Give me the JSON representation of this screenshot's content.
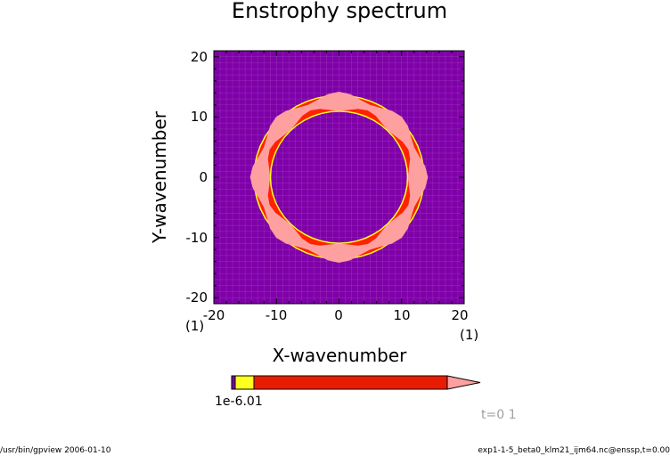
{
  "chart_data": {
    "type": "heatmap",
    "title": "Enstrophy spectrum",
    "xlabel": "X-wavenumber",
    "ylabel": "Y-wavenumber",
    "xlim": [
      -20,
      20
    ],
    "ylim": [
      -21,
      21
    ],
    "x_ticks": [
      -20,
      -10,
      0,
      10,
      20
    ],
    "y_ticks": [
      20,
      10,
      0,
      -10,
      -20
    ],
    "x_unit": "(1)",
    "y_unit": "(1)",
    "grid": true,
    "contour_levels": [
      "1e-06",
      "0.01"
    ],
    "level_label_overlap": "1e-6.01",
    "shading_colors": {
      "below": "#7f00a8",
      "low": "#ffff20",
      "mid": "#ff2200",
      "high": "#ffa0a0"
    },
    "feature": "ring of high enstrophy near wavenumber radius ~12",
    "ring_radius": 12.5,
    "ring_width": 2.2
  },
  "time_label": "t=0 1",
  "footer": {
    "left": "/usr/bin/gpview  2006-01-10",
    "right": "exp1-1-5_beta0_klm21_ijm64.nc@enssp,t=0.00"
  }
}
